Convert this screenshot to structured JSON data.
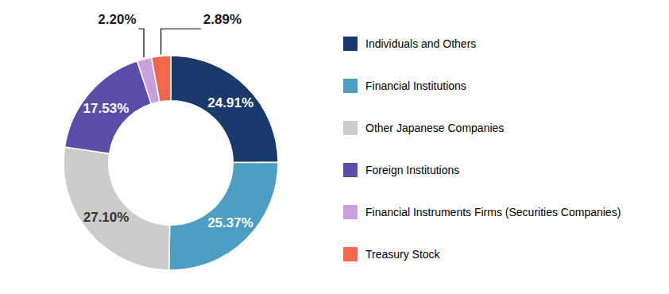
{
  "chart_data": {
    "type": "pie",
    "categories": [
      "Individuals and Others",
      "Financial Institutions",
      "Other Japanese Companies",
      "Foreign Institutions",
      "Financial Instruments Firms (Securities Companies)",
      "Treasury Stock"
    ],
    "values": [
      24.91,
      25.37,
      27.1,
      17.53,
      2.2,
      2.89
    ],
    "value_labels": [
      "24.91%",
      "25.37%",
      "27.10%",
      "17.53%",
      "2.20%",
      "2.89%"
    ],
    "colors": [
      "#1a3a6b",
      "#4e9ec4",
      "#cccccc",
      "#5b4ea8",
      "#c9a0dc",
      "#f26649"
    ],
    "data_labels": true,
    "legend": "right"
  }
}
